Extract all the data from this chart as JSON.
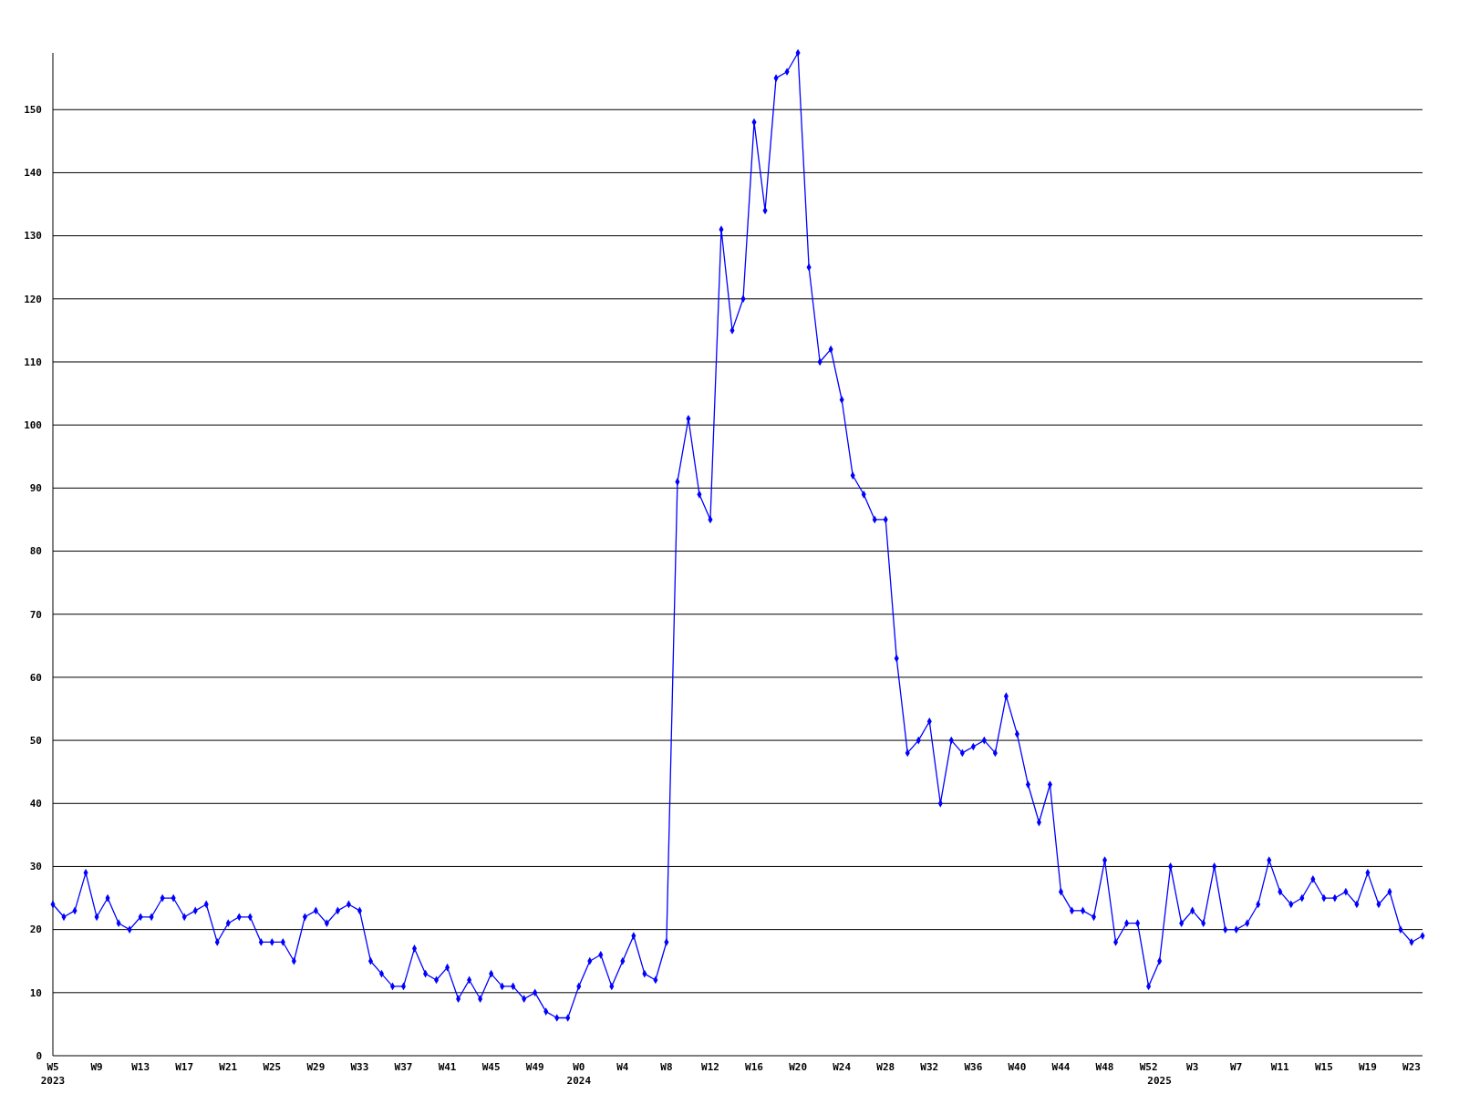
{
  "chart_data": {
    "type": "line",
    "categories": [
      "W5\n2023",
      null,
      null,
      null,
      "W9",
      null,
      null,
      null,
      "W13",
      null,
      null,
      null,
      "W17",
      null,
      null,
      null,
      "W21",
      null,
      null,
      null,
      "W25",
      null,
      null,
      null,
      "W29",
      null,
      null,
      null,
      "W33",
      null,
      null,
      null,
      "W37",
      null,
      null,
      null,
      "W41",
      null,
      null,
      null,
      "W45",
      null,
      null,
      null,
      "W49",
      null,
      null,
      null,
      "W0\n2024",
      null,
      null,
      null,
      "W4",
      null,
      null,
      null,
      "W8",
      null,
      null,
      null,
      "W12",
      null,
      null,
      null,
      "W16",
      null,
      null,
      null,
      "W20",
      null,
      null,
      null,
      "W24",
      null,
      null,
      null,
      "W28",
      null,
      null,
      null,
      "W32",
      null,
      null,
      null,
      "W36",
      null,
      null,
      null,
      "W40",
      null,
      null,
      null,
      "W44",
      null,
      null,
      null,
      "W48",
      null,
      null,
      null,
      "W52",
      "\n2025",
      null,
      null,
      "W3",
      null,
      null,
      null,
      "W7",
      null,
      null,
      null,
      "W11",
      null,
      null,
      null,
      "W15",
      null,
      null,
      null,
      "W19",
      null,
      null,
      null,
      "W23",
      null
    ],
    "values": [
      24,
      22,
      23,
      29,
      22,
      25,
      21,
      20,
      22,
      22,
      25,
      25,
      22,
      23,
      24,
      18,
      21,
      22,
      22,
      18,
      18,
      18,
      15,
      22,
      23,
      21,
      23,
      24,
      23,
      15,
      13,
      11,
      11,
      17,
      13,
      12,
      14,
      9,
      12,
      9,
      13,
      11,
      11,
      9,
      10,
      7,
      6,
      6,
      11,
      15,
      16,
      11,
      15,
      19,
      13,
      12,
      18,
      91,
      101,
      89,
      85,
      131,
      115,
      120,
      148,
      134,
      155,
      156,
      159,
      125,
      110,
      112,
      104,
      92,
      89,
      85,
      85,
      63,
      48,
      50,
      53,
      40,
      50,
      48,
      49,
      50,
      48,
      57,
      51,
      43,
      37,
      43,
      26,
      23,
      23,
      22,
      31,
      18,
      21,
      21,
      11,
      15,
      30,
      21,
      23,
      21,
      30,
      20,
      20,
      21,
      24,
      31,
      26,
      24,
      25,
      28,
      25,
      25,
      26,
      24,
      29,
      24,
      26,
      20,
      18,
      19
    ],
    "color": "#0000ff",
    "ylim": [
      0,
      159
    ],
    "yticks": [
      0,
      10,
      20,
      30,
      40,
      50,
      60,
      70,
      80,
      90,
      100,
      110,
      120,
      130,
      140,
      150
    ],
    "grid": "y",
    "marker": "diamond",
    "line_style": "solid"
  }
}
